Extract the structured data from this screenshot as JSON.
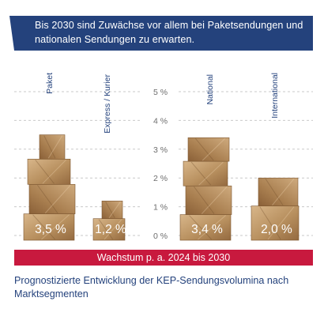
{
  "header": {
    "text": "Bis 2030 sind Zuwächse vor allem bei Paketsendungen und nationalen Sendungen zu erwarten."
  },
  "chart_data": {
    "type": "bar",
    "categories": [
      "Paket",
      "Express / Kurier",
      "National",
      "International"
    ],
    "values": [
      3.5,
      1.2,
      3.4,
      2.0
    ],
    "value_labels": [
      "3,5 %",
      "1,2 %",
      "3,4 %",
      "2,0 %"
    ],
    "y_ticks": [
      "0 %",
      "1 %",
      "2 %",
      "3 %",
      "4 %",
      "5 %"
    ],
    "ylim": [
      0,
      5
    ],
    "grid": true,
    "xlabel": "Wachstum p. a. 2024 bis 2030",
    "title": ""
  },
  "caption": "Prognostizierte Entwicklung der KEP-Sendungsvolumina nach Marktsegmenten",
  "colors": {
    "header_bg": "#24427c",
    "band_bg": "#c8193e",
    "box_light": "#c9a478",
    "box_dark": "#9c7448",
    "label_blue": "#24427c"
  }
}
